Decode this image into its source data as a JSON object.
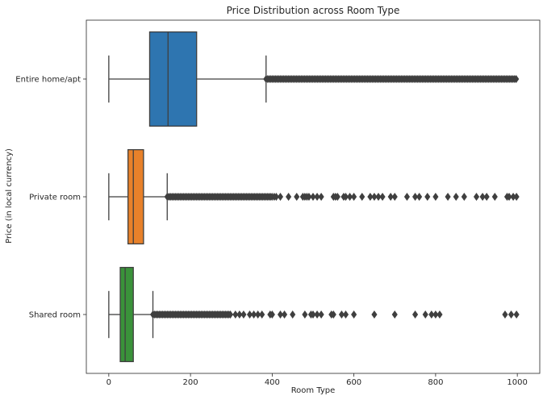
{
  "chart_data": {
    "type": "boxplot",
    "orientation": "horizontal",
    "title": "Price Distribution across Room Type",
    "xlabel": "Room Type",
    "ylabel": "Price (in local currency)",
    "xlim": [
      -55,
      1055
    ],
    "xticks": [
      0,
      200,
      400,
      600,
      800,
      1000
    ],
    "xtick_labels": [
      "0",
      "200",
      "400",
      "600",
      "800",
      "1000"
    ],
    "grid": false,
    "legend": "none",
    "categories": [
      "Entire home/apt",
      "Private room",
      "Shared room"
    ],
    "series": [
      {
        "category": "Entire home/apt",
        "color": "#2e75b0",
        "whisker_low": 0,
        "q1": 100,
        "median": 145,
        "q3": 215,
        "whisker_high": 385,
        "outlier_range": [
          385,
          1000
        ],
        "sparse_outliers": []
      },
      {
        "category": "Private room",
        "color": "#e8812a",
        "whisker_low": 0,
        "q1": 47,
        "median": 60,
        "q3": 85,
        "whisker_high": 143,
        "outlier_range": [
          143,
          400
        ],
        "sparse_outliers": [
          405,
          410,
          420,
          440,
          460,
          475,
          480,
          485,
          490,
          500,
          510,
          520,
          550,
          555,
          560,
          575,
          580,
          590,
          600,
          620,
          640,
          650,
          660,
          670,
          690,
          700,
          730,
          750,
          760,
          780,
          800,
          830,
          850,
          870,
          900,
          915,
          925,
          945,
          975,
          980,
          990,
          998
        ]
      },
      {
        "category": "Shared room",
        "color": "#3a923a",
        "whisker_low": 0,
        "q1": 28,
        "median": 40,
        "q3": 60,
        "whisker_high": 108,
        "outlier_range": [
          108,
          300
        ],
        "sparse_outliers": [
          310,
          320,
          330,
          345,
          355,
          365,
          375,
          395,
          400,
          420,
          430,
          450,
          480,
          495,
          500,
          510,
          520,
          545,
          550,
          570,
          580,
          600,
          650,
          700,
          750,
          775,
          790,
          800,
          810,
          970,
          985,
          998
        ]
      }
    ]
  }
}
